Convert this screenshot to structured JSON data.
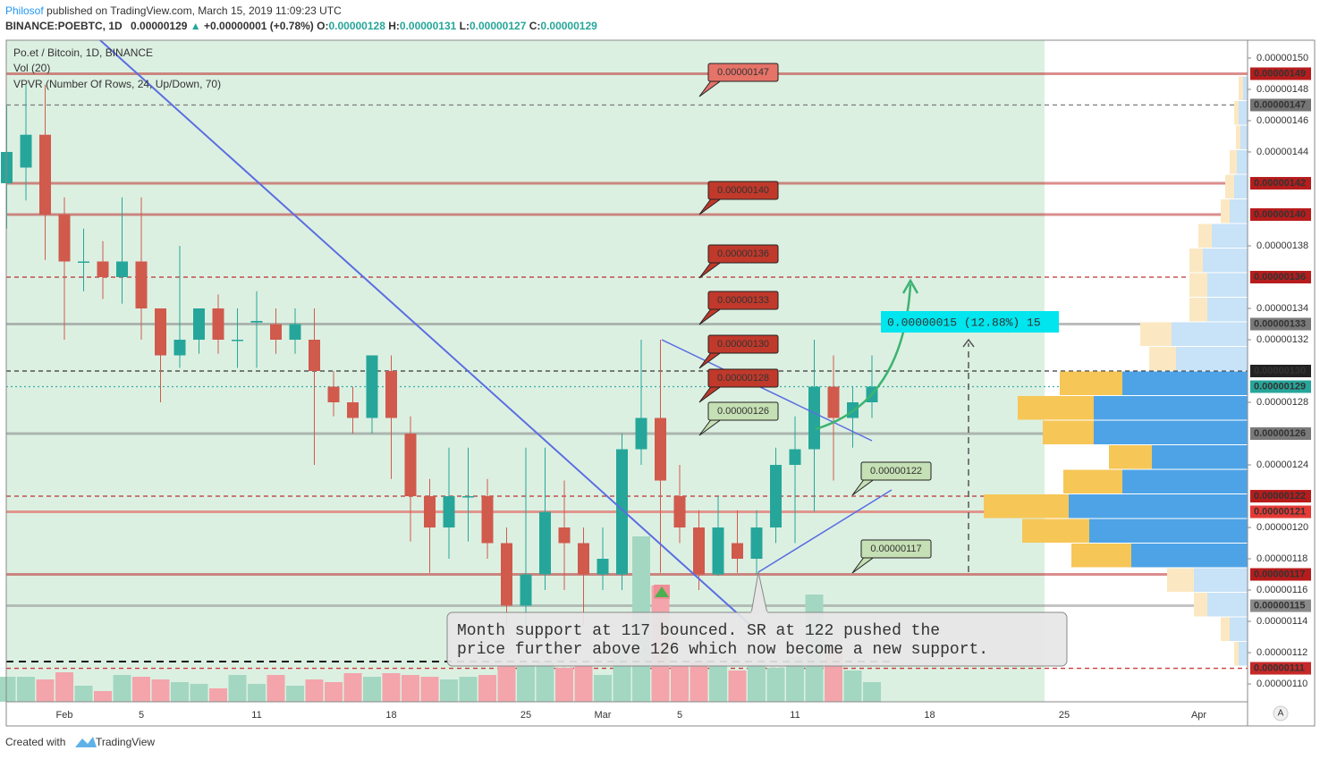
{
  "header": {
    "author": "Philosof",
    "published": "published on TradingView.com, March 15, 2019 11:09:23 UTC"
  },
  "legend": {
    "symbol": "BINANCE:POEBTC, 1D",
    "last": "0.00000129",
    "arrow": "▲",
    "change": "+0.00000001 (+0.78%)",
    "ohlc": [
      [
        "O:",
        "0.00000128"
      ],
      [
        "H:",
        "0.00000131"
      ],
      [
        "L:",
        "0.00000127"
      ],
      [
        "C:",
        "0.00000129"
      ]
    ]
  },
  "footer": {
    "created": "Created with",
    "brand": "TradingView"
  },
  "chart_data": {
    "type": "candlestick",
    "title": "Po.et / Bitcoin, 1D, BINANCE",
    "indicators": [
      "Vol (20)",
      "VPVR (Number Of Rows, 24, Up/Down, 70)"
    ],
    "categories": [
      null,
      null,
      null,
      "Feb",
      null,
      null,
      null,
      "5",
      null,
      null,
      null,
      null,
      null,
      "11",
      null,
      null,
      null,
      null,
      null,
      null,
      "18",
      null,
      null,
      null,
      null,
      null,
      null,
      "25",
      null,
      null,
      null,
      "Mar",
      null,
      null,
      null,
      "5",
      null,
      null,
      null,
      null,
      null,
      "11",
      null,
      null,
      null,
      null,
      null,
      null,
      "18",
      null,
      null,
      null,
      null,
      null,
      null,
      "25",
      null,
      null,
      null,
      null,
      null,
      null,
      "Apr",
      null,
      null
    ],
    "open": [
      1.42e-06,
      1.43e-06,
      1.451e-06,
      1.4e-06,
      1.37e-06,
      1.37e-06,
      1.36e-06,
      1.37e-06,
      1.34e-06,
      1.31e-06,
      1.32e-06,
      1.34e-06,
      1.32e-06,
      1.331e-06,
      1.33e-06,
      1.32e-06,
      1.32e-06,
      1.29e-06,
      1.28e-06,
      1.27e-06,
      1.3e-06,
      1.26e-06,
      1.22e-06,
      1.2e-06,
      1.22e-06,
      1.22e-06,
      1.19e-06,
      1.15e-06,
      1.17e-06,
      1.2e-06,
      1.19e-06,
      1.17e-06,
      1.17e-06,
      1.25e-06,
      1.27e-06,
      1.22e-06,
      1.2e-06,
      1.17e-06,
      1.19e-06,
      1.18e-06,
      1.2e-06,
      1.24e-06,
      1.25e-06,
      1.29e-06,
      1.27e-06,
      1.28e-06,
      null,
      null,
      null,
      null,
      null,
      null,
      null,
      null,
      null,
      null,
      null,
      null,
      null,
      null,
      null,
      null,
      null,
      null,
      null
    ],
    "high": [
      1.47e-06,
      1.483e-06,
      1.483e-06,
      1.411e-06,
      1.391e-06,
      1.383e-06,
      1.411e-06,
      1.411e-06,
      1.34e-06,
      1.38e-06,
      1.34e-06,
      1.349e-06,
      1.34e-06,
      1.351e-06,
      1.34e-06,
      1.34e-06,
      1.34e-06,
      1.3e-06,
      1.29e-06,
      1.31e-06,
      1.31e-06,
      1.271e-06,
      1.231e-06,
      1.251e-06,
      1.251e-06,
      1.231e-06,
      1.2e-06,
      1.251e-06,
      1.251e-06,
      1.23e-06,
      1.2e-06,
      1.2e-06,
      1.26e-06,
      1.32e-06,
      1.32e-06,
      1.24e-06,
      1.211e-06,
      1.22e-06,
      1.211e-06,
      1.211e-06,
      1.251e-06,
      1.271e-06,
      1.32e-06,
      1.31e-06,
      1.29e-06,
      1.31e-06,
      null,
      null,
      null,
      null,
      null,
      null,
      null,
      null,
      null,
      null,
      null,
      null,
      null,
      null,
      null,
      null,
      null,
      null,
      null
    ],
    "low": [
      1.391e-06,
      1.409e-06,
      1.371e-06,
      1.32e-06,
      1.351e-06,
      1.346e-06,
      1.343e-06,
      1.32e-06,
      1.28e-06,
      1.302e-06,
      1.311e-06,
      1.311e-06,
      1.302e-06,
      1.302e-06,
      1.311e-06,
      1.311e-06,
      1.24e-06,
      1.271e-06,
      1.26e-06,
      1.26e-06,
      1.231e-06,
      1.191e-06,
      1.171e-06,
      1.18e-06,
      1.191e-06,
      1.18e-06,
      1.137e-06,
      1.137e-06,
      1.16e-06,
      1.16e-06,
      1.137e-06,
      1.16e-06,
      1.16e-06,
      1.24e-06,
      1.171e-06,
      1.19e-06,
      1.16e-06,
      1.169e-06,
      1.171e-06,
      1.17e-06,
      1.19e-06,
      1.19e-06,
      1.21e-06,
      1.23e-06,
      1.251e-06,
      1.27e-06,
      null,
      null,
      null,
      null,
      null,
      null,
      null,
      null,
      null,
      null,
      null,
      null,
      null,
      null,
      null,
      null,
      null,
      null,
      null
    ],
    "close": [
      1.44e-06,
      1.451e-06,
      1.4e-06,
      1.37e-06,
      1.37e-06,
      1.36e-06,
      1.37e-06,
      1.34e-06,
      1.31e-06,
      1.32e-06,
      1.34e-06,
      1.32e-06,
      1.32e-06,
      1.332e-06,
      1.32e-06,
      1.33e-06,
      1.3e-06,
      1.28e-06,
      1.27e-06,
      1.31e-06,
      1.27e-06,
      1.22e-06,
      1.2e-06,
      1.22e-06,
      1.22e-06,
      1.19e-06,
      1.15e-06,
      1.17e-06,
      1.21e-06,
      1.19e-06,
      1.17e-06,
      1.18e-06,
      1.25e-06,
      1.27e-06,
      1.23e-06,
      1.2e-06,
      1.17e-06,
      1.2e-06,
      1.18e-06,
      1.2e-06,
      1.24e-06,
      1.25e-06,
      1.29e-06,
      1.27e-06,
      1.28e-06,
      1.29e-06,
      null,
      null,
      null,
      null,
      null,
      null,
      null,
      null,
      null,
      null,
      null,
      null,
      null,
      null,
      null,
      null,
      null,
      null,
      null
    ],
    "volume": [
      28,
      28,
      25,
      33,
      18,
      12,
      30,
      28,
      25,
      22,
      20,
      15,
      30,
      20,
      30,
      18,
      25,
      22,
      32,
      28,
      32,
      30,
      28,
      25,
      28,
      30,
      40,
      42,
      45,
      38,
      40,
      30,
      60,
      185,
      130,
      40,
      45,
      40,
      35,
      42,
      38,
      50,
      120,
      60,
      35,
      22,
      null,
      null,
      null,
      null,
      null,
      null,
      null,
      null,
      null,
      null,
      null,
      null,
      null,
      null,
      null,
      null,
      null,
      null,
      null
    ],
    "up_color": "#26a69a",
    "down_color": "#d05a4c",
    "volume_up_color": "#a3d7c2",
    "volume_down_color": "#f3a5ab",
    "ylim": [
      1.0886e-06,
      1.5114e-06
    ],
    "yticks": [
      {
        "value": 1.5e-06,
        "label": "0.00000150"
      },
      {
        "value": 1.48e-06,
        "label": "0.00000148"
      },
      {
        "value": 1.46e-06,
        "label": "0.00000146"
      },
      {
        "value": 1.44e-06,
        "label": "0.00000144"
      },
      {
        "value": 1.38e-06,
        "label": "0.00000138"
      },
      {
        "value": 1.34e-06,
        "label": "0.00000134"
      },
      {
        "value": 1.32e-06,
        "label": "0.00000132"
      },
      {
        "value": 1.28e-06,
        "label": "0.00000128"
      },
      {
        "value": 1.24e-06,
        "label": "0.00000124"
      },
      {
        "value": 1.2e-06,
        "label": "0.00000120"
      },
      {
        "value": 1.18e-06,
        "label": "0.00000118"
      },
      {
        "value": 1.16e-06,
        "label": "0.00000116"
      },
      {
        "value": 1.14e-06,
        "label": "0.00000114"
      },
      {
        "value": 1.12e-06,
        "label": "0.00000112"
      },
      {
        "value": 1.1e-06,
        "label": "0.00000110"
      }
    ],
    "grid": false,
    "levels": [
      {
        "value": 1.49e-06,
        "label": "0.00000149",
        "color": "#b71c1c",
        "style": "solid"
      },
      {
        "value": 1.47e-06,
        "label": "0.00000147",
        "color": "#757575",
        "style": "dashed"
      },
      {
        "value": 1.42e-06,
        "label": "0.00000142",
        "color": "#b71c1c",
        "style": "solid"
      },
      {
        "value": 1.4e-06,
        "label": "0.00000140",
        "color": "#b71c1c",
        "style": "solid"
      },
      {
        "value": 1.36e-06,
        "label": "0.00000136",
        "color": "#b71c1c",
        "style": "dashed"
      },
      {
        "value": 1.33e-06,
        "label": "0.00000133",
        "color": "#7a7a7a",
        "style": "solid"
      },
      {
        "value": 1.3e-06,
        "label": "0.00000130",
        "color": "#222222",
        "style": "dashed"
      },
      {
        "value": 1.29e-06,
        "label": "0.00000129",
        "color": "#26a69a",
        "style": "dotted"
      },
      {
        "value": 1.26e-06,
        "label": "0.00000126",
        "color": "#7a7a7a",
        "style": "solid"
      },
      {
        "value": 1.22e-06,
        "label": "0.00000122",
        "color": "#b71c1c",
        "style": "dashed"
      },
      {
        "value": 1.21e-06,
        "label": "0.00000121",
        "color": "#e53935",
        "style": "solid"
      },
      {
        "value": 1.17e-06,
        "label": "0.00000117",
        "color": "#b71c1c",
        "style": "solid"
      },
      {
        "value": 1.15e-06,
        "label": "0.00000115",
        "color": "#8a8a8a",
        "style": "solid"
      },
      {
        "value": 1.11e-06,
        "label": "0.00000111",
        "color": "#c62828",
        "style": "dashed"
      }
    ],
    "callouts": [
      {
        "text": "0.00000147",
        "color": "#e57368"
      },
      {
        "text": "0.00000140",
        "color": "#c0392b"
      },
      {
        "text": "0.00000136",
        "color": "#c0392b"
      },
      {
        "text": "0.00000133",
        "color": "#c0392b"
      },
      {
        "text": "0.00000130",
        "color": "#c0392b"
      },
      {
        "text": "0.00000128",
        "color": "#c0392b"
      },
      {
        "text": "0.00000126",
        "color": "#c5e0b4"
      },
      {
        "text": "0.00000122",
        "color": "#c5e0b4"
      },
      {
        "text": "0.00000117",
        "color": "#c5e0b4"
      }
    ],
    "measure": "0.00000015 (12.88%) 15",
    "note": [
      "Month support at 117 bounced. SR at 122 pushed the",
      "price further above 126 which now become a new support."
    ],
    "vpvr": {
      "up": [
        5,
        10,
        8,
        12,
        15,
        20,
        40,
        50,
        45,
        45,
        85,
        80,
        140,
        172,
        172,
        107,
        140,
        200,
        177,
        130,
        60,
        45,
        20,
        10
      ],
      "down": [
        5,
        5,
        5,
        8,
        10,
        10,
        15,
        15,
        20,
        20,
        35,
        30,
        70,
        85,
        57,
        48,
        66,
        95,
        75,
        67,
        30,
        15,
        10,
        5
      ],
      "value_area": [
        12,
        19
      ]
    },
    "scale_button": "A"
  }
}
